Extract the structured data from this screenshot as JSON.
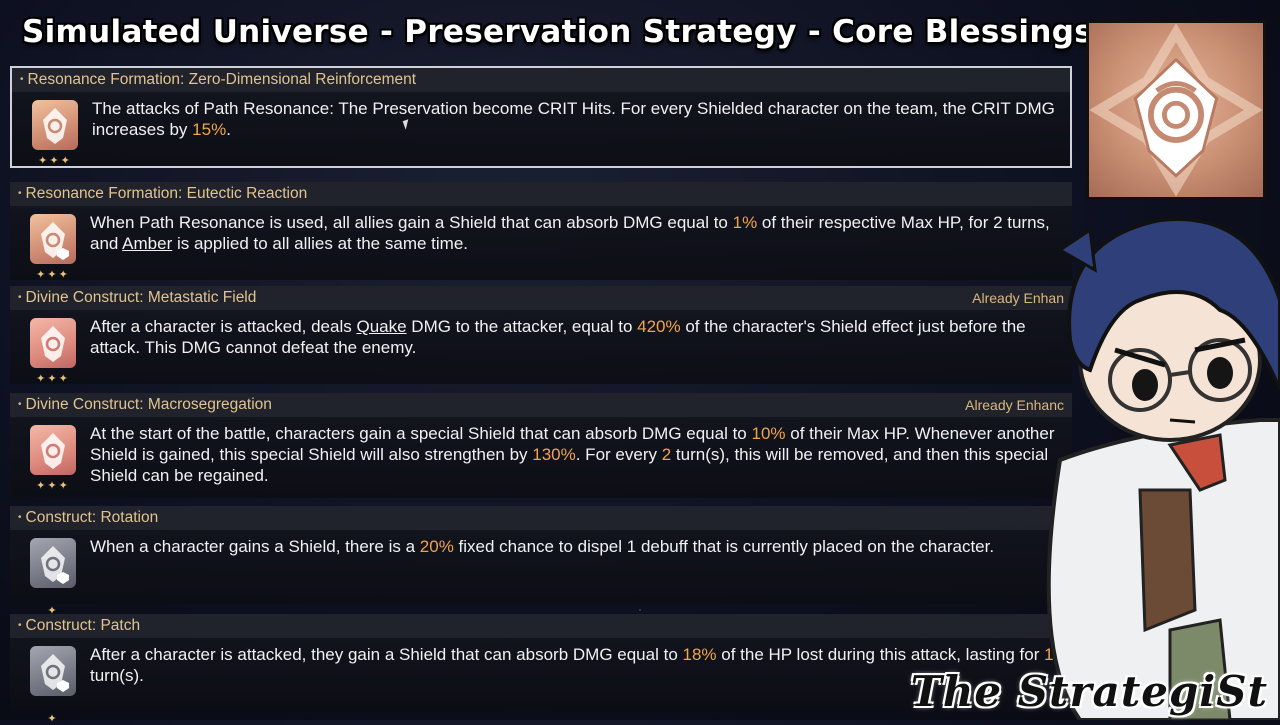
{
  "page": {
    "title": "Simulated Universe - Preservation Strategy - Core Blessings",
    "watermark": "The StrategiSt"
  },
  "colors": {
    "highlight": "#f0a54c",
    "title_gold": "#e2c48e",
    "star_gold": "#e7c37c"
  },
  "blessings": [
    {
      "title": "Resonance Formation: Zero-Dimensional Reinforcement",
      "status": "",
      "rarity": 3,
      "icon": "preservation-gold-icon",
      "selected": true,
      "desc": [
        {
          "t": "The attacks of Path Resonance: The Preservation become CRIT Hits. For every Shielded character on the team, the CRIT DMG increases by "
        },
        {
          "t": "15%",
          "hl": true
        },
        {
          "t": "."
        }
      ]
    },
    {
      "title": "Resonance Formation: Eutectic Reaction",
      "status": "",
      "rarity": 3,
      "icon": "preservation-shield-gold-icon",
      "desc": [
        {
          "t": "When Path Resonance is used, all allies gain a Shield that can absorb DMG equal to "
        },
        {
          "t": "1%",
          "hl": true
        },
        {
          "t": " of their respective Max HP, for 2 turns, and "
        },
        {
          "t": "Amber",
          "ul": true
        },
        {
          "t": " is applied to all allies at the same time."
        }
      ]
    },
    {
      "title": "Divine Construct: Metastatic Field",
      "status": "Already Enhan",
      "rarity": 3,
      "icon": "preservation-pink-icon",
      "desc": [
        {
          "t": "After a character is attacked, deals "
        },
        {
          "t": "Quake",
          "ul": true
        },
        {
          "t": " DMG to the attacker, equal to "
        },
        {
          "t": "420%",
          "hl": true
        },
        {
          "t": " of the character's Shield effect just before the attack. This DMG cannot defeat the enemy."
        }
      ]
    },
    {
      "title": "Divine Construct: Macrosegregation",
      "status": "Already Enhanc",
      "rarity": 3,
      "icon": "preservation-pink-icon",
      "desc": [
        {
          "t": "At the start of the battle, characters gain a special Shield that can absorb DMG equal to "
        },
        {
          "t": "10%",
          "hl": true
        },
        {
          "t": " of their Max HP. Whenever another Shield is gained, this special Shield will also strengthen by "
        },
        {
          "t": "130%",
          "hl": true
        },
        {
          "t": ". For every "
        },
        {
          "t": "2",
          "hl": true
        },
        {
          "t": " turn(s), this will be removed, and then this special Shield can be regained."
        }
      ]
    },
    {
      "title": "Construct: Rotation",
      "status": "",
      "rarity": 1,
      "icon": "preservation-gray-icon",
      "desc": [
        {
          "t": "When a character gains a Shield, there is a "
        },
        {
          "t": "20%",
          "hl": true
        },
        {
          "t": " fixed chance to dispel 1 debuff that is currently placed on the character."
        }
      ]
    },
    {
      "title": "Construct: Patch",
      "status": "",
      "rarity": 1,
      "icon": "preservation-gray-icon",
      "desc": [
        {
          "t": "After a character is attacked, they gain a Shield that can absorb DMG equal to "
        },
        {
          "t": "18%",
          "hl": true
        },
        {
          "t": " of the HP lost during this attack, lasting for "
        },
        {
          "t": "1",
          "hl": true
        },
        {
          "t": " turn(s)."
        }
      ]
    }
  ]
}
